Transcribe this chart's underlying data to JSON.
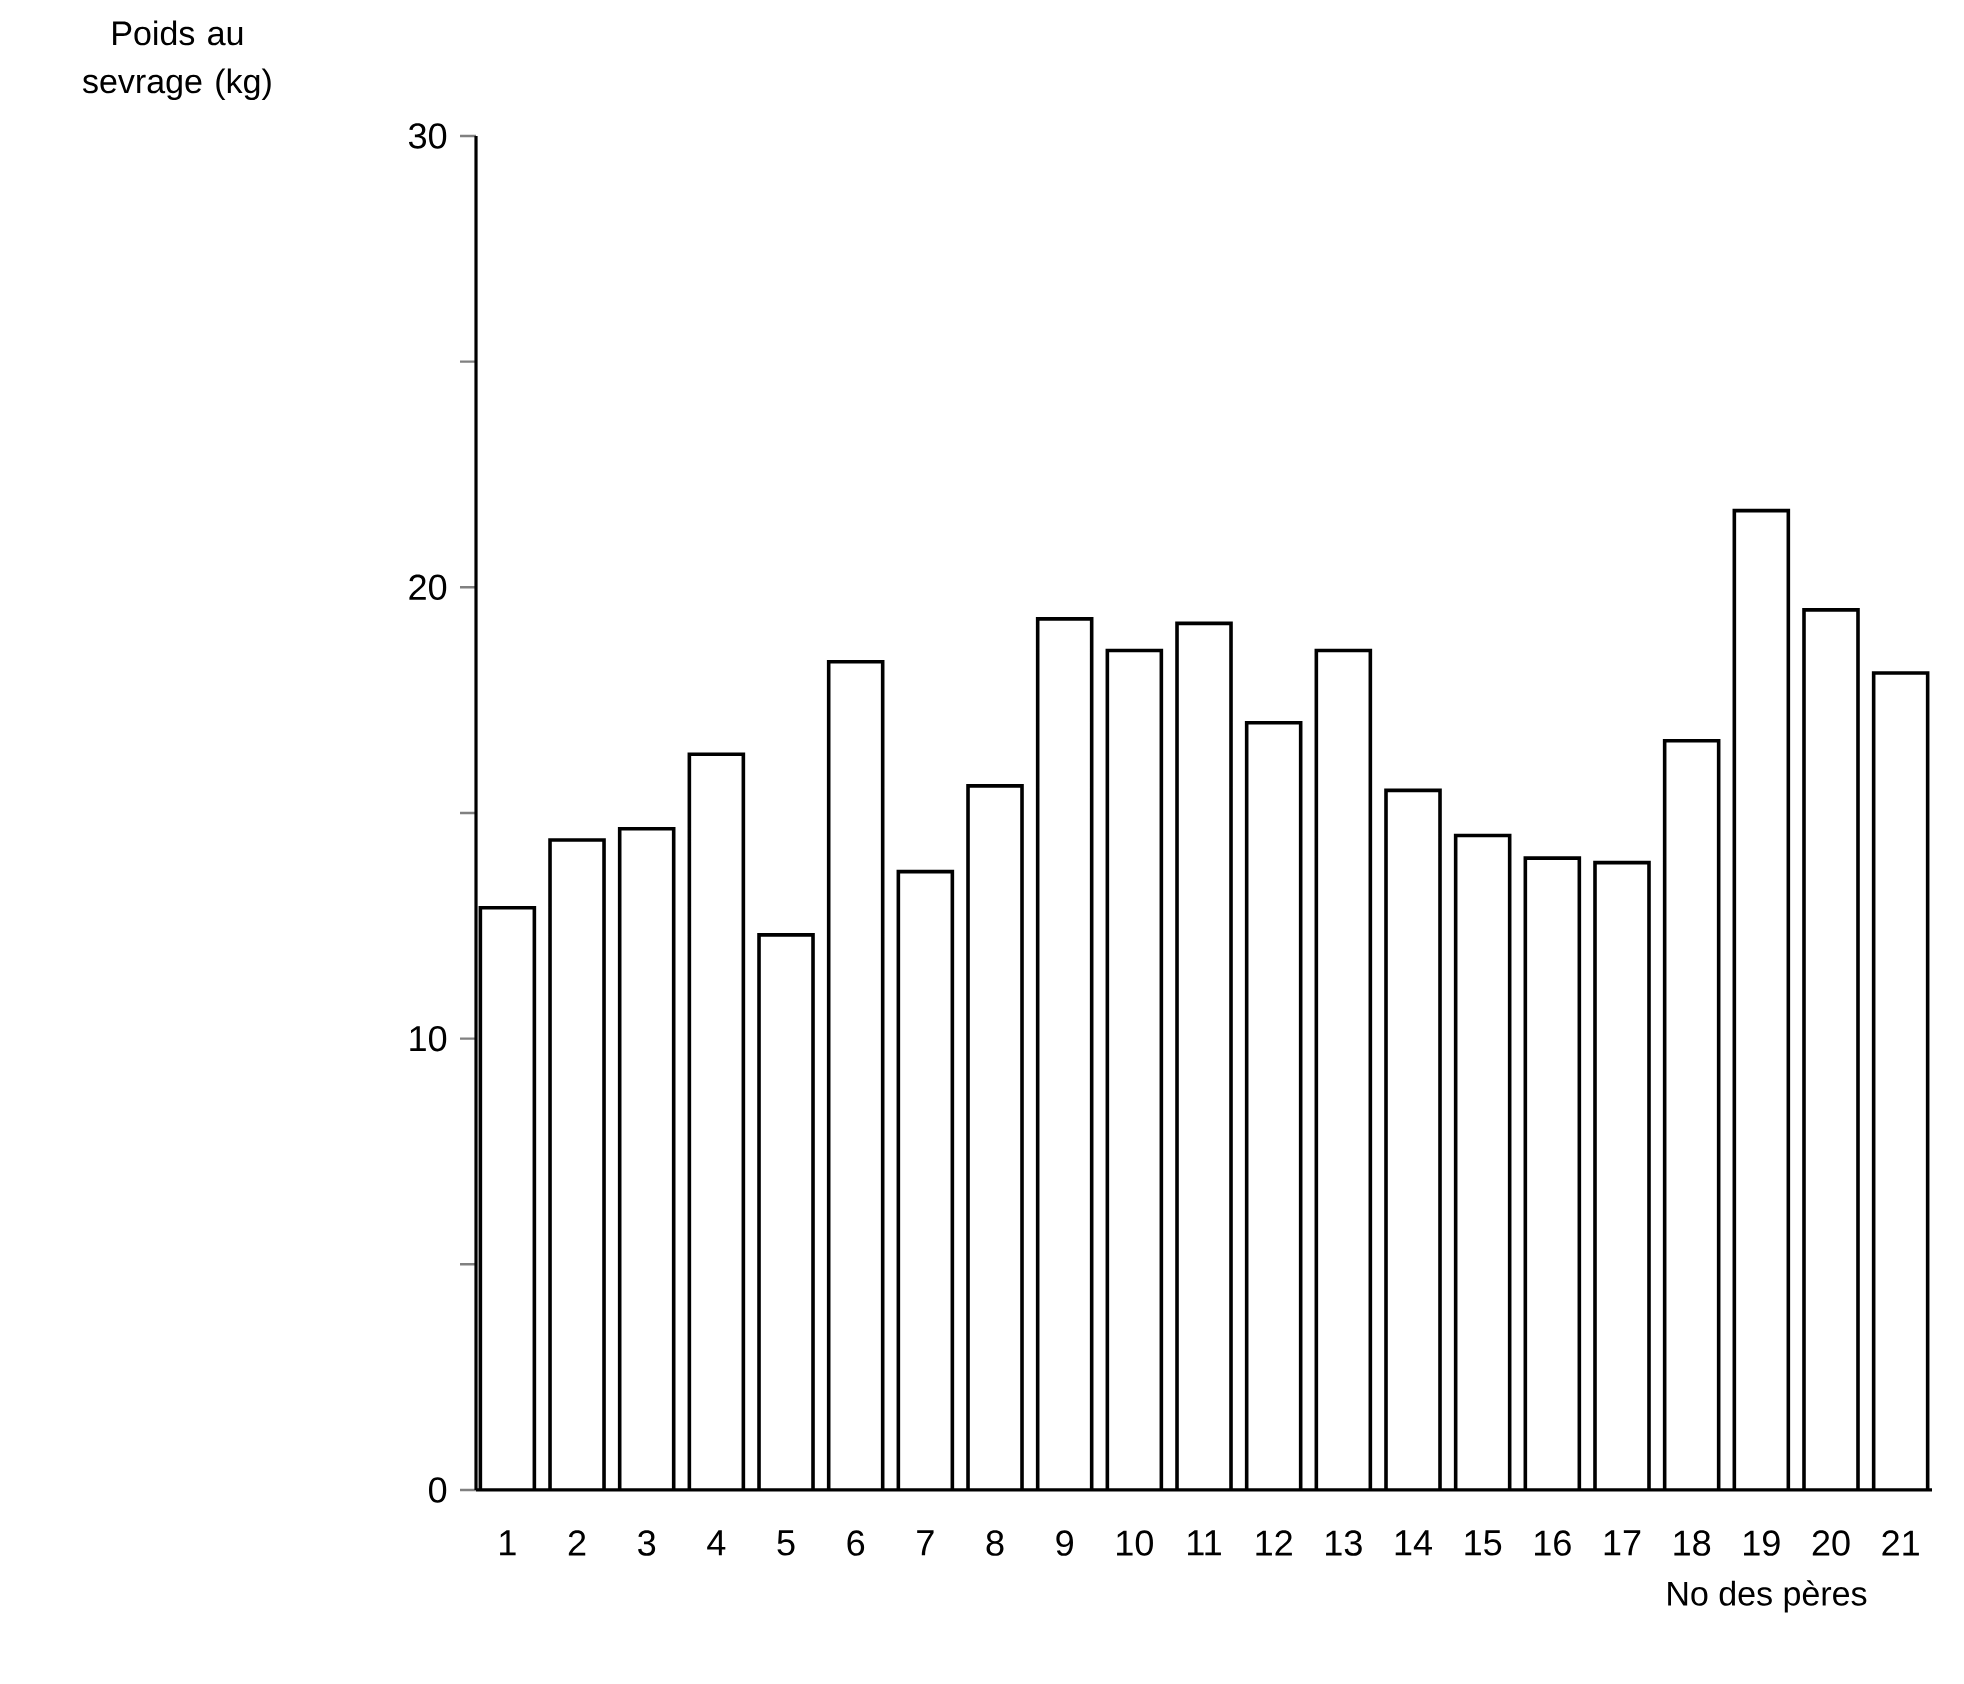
{
  "chart_data": {
    "type": "bar",
    "xlabel": "No des pères",
    "ylabel": "Poids au sevrage (kg)",
    "categories": [
      "1",
      "2",
      "3",
      "4",
      "5",
      "6",
      "7",
      "8",
      "9",
      "10",
      "11",
      "12",
      "13",
      "14",
      "15",
      "16",
      "17",
      "18",
      "19",
      "20",
      "21"
    ],
    "values": [
      12.9,
      14.4,
      14.65,
      16.3,
      12.3,
      18.35,
      13.7,
      15.6,
      19.3,
      18.6,
      19.2,
      17.0,
      18.6,
      15.5,
      14.5,
      14.0,
      13.9,
      16.6,
      21.7,
      19.5,
      18.1
    ],
    "color": "#ffffff",
    "ylim": [
      0,
      30
    ],
    "yticks": [
      0,
      {
        "value": 5,
        "label": null
      },
      10,
      {
        "value": 15,
        "label": null
      },
      20,
      {
        "value": 25,
        "label": null
      },
      30
    ],
    "grid": false
  }
}
